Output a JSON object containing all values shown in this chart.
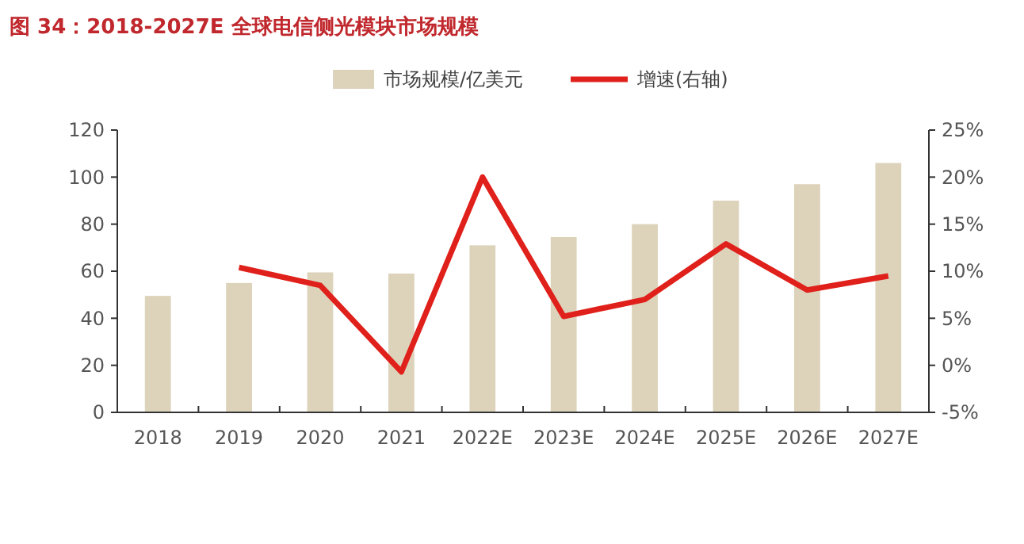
{
  "chart_data": {
    "type": "bar",
    "title": "图 34：2018-2027E 全球电信侧光模块市场规模",
    "categories": [
      "2018",
      "2019",
      "2020",
      "2021",
      "2022E",
      "2023E",
      "2024E",
      "2025E",
      "2026E",
      "2027E"
    ],
    "series": [
      {
        "name": "市场规模/亿美元",
        "color": "#ddd3bb",
        "values": [
          49.5,
          55,
          59.5,
          59,
          71,
          74.5,
          80,
          90,
          97,
          106
        ]
      },
      {
        "name": "增速(右轴)",
        "type": "line",
        "axis": "y2",
        "color": "#e0201b",
        "values": [
          null,
          10.4,
          8.5,
          -0.7,
          20,
          5.2,
          7.0,
          12.9,
          8.0,
          9.5
        ]
      }
    ],
    "ylim": [
      0,
      120
    ],
    "yticks": [
      0,
      20,
      40,
      60,
      80,
      100,
      120
    ],
    "y2lim": [
      -5,
      25
    ],
    "y2ticks": [
      {
        "value": -5,
        "label": "-5%"
      },
      {
        "value": 0,
        "label": "0%"
      },
      {
        "value": 5,
        "label": "5%"
      },
      {
        "value": 10,
        "label": "10%"
      },
      {
        "value": 15,
        "label": "15%"
      },
      {
        "value": 20,
        "label": "20%"
      },
      {
        "value": 25,
        "label": "25%"
      }
    ],
    "legend": "top",
    "grid": false
  }
}
